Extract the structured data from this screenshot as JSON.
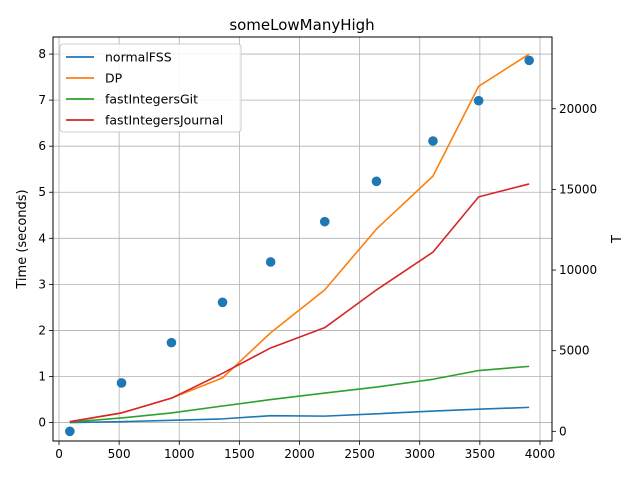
{
  "chart_data": {
    "type": "line",
    "title": "someLowManyHigh",
    "xlabel": "",
    "ylabel": "Time (seconds)",
    "y2label": "T",
    "xlim": [
      -50,
      4100
    ],
    "ylim": [
      -0.4,
      8.37
    ],
    "y2lim": [
      -600,
      24450
    ],
    "x_ticks": [
      0,
      500,
      1000,
      1500,
      2000,
      2500,
      3000,
      3500,
      4000
    ],
    "y_ticks": [
      0,
      1,
      2,
      3,
      4,
      5,
      6,
      7,
      8
    ],
    "y2_ticks": [
      0,
      5000,
      10000,
      15000,
      20000
    ],
    "grid": true,
    "legend_position": "upper-left",
    "x": [
      90,
      520,
      935,
      1360,
      1760,
      2210,
      2640,
      3110,
      3490,
      3910
    ],
    "series": [
      {
        "name": "normalFSS",
        "color": "#1f77b4",
        "axis": "left",
        "values": [
          0.0,
          0.02,
          0.05,
          0.08,
          0.15,
          0.14,
          0.19,
          0.25,
          0.29,
          0.33
        ]
      },
      {
        "name": "DP",
        "color": "#ff7f0e",
        "axis": "left",
        "values": [
          0.02,
          0.21,
          0.53,
          0.97,
          1.95,
          2.88,
          4.2,
          5.35,
          7.3,
          8.0
        ]
      },
      {
        "name": "fastIntegersGit",
        "color": "#2ca02c",
        "axis": "left",
        "values": [
          0.01,
          0.1,
          0.21,
          0.36,
          0.5,
          0.64,
          0.77,
          0.94,
          1.13,
          1.22
        ]
      },
      {
        "name": "fastIntegersJournal",
        "color": "#d62728",
        "axis": "left",
        "values": [
          0.02,
          0.21,
          0.53,
          1.07,
          1.62,
          2.06,
          2.88,
          3.7,
          4.9,
          5.18
        ]
      }
    ],
    "scatter": {
      "color": "#1f77b4",
      "axis": "right",
      "values": [
        0,
        3000,
        5500,
        8000,
        10500,
        13000,
        15500,
        18000,
        20500,
        23000
      ]
    }
  }
}
